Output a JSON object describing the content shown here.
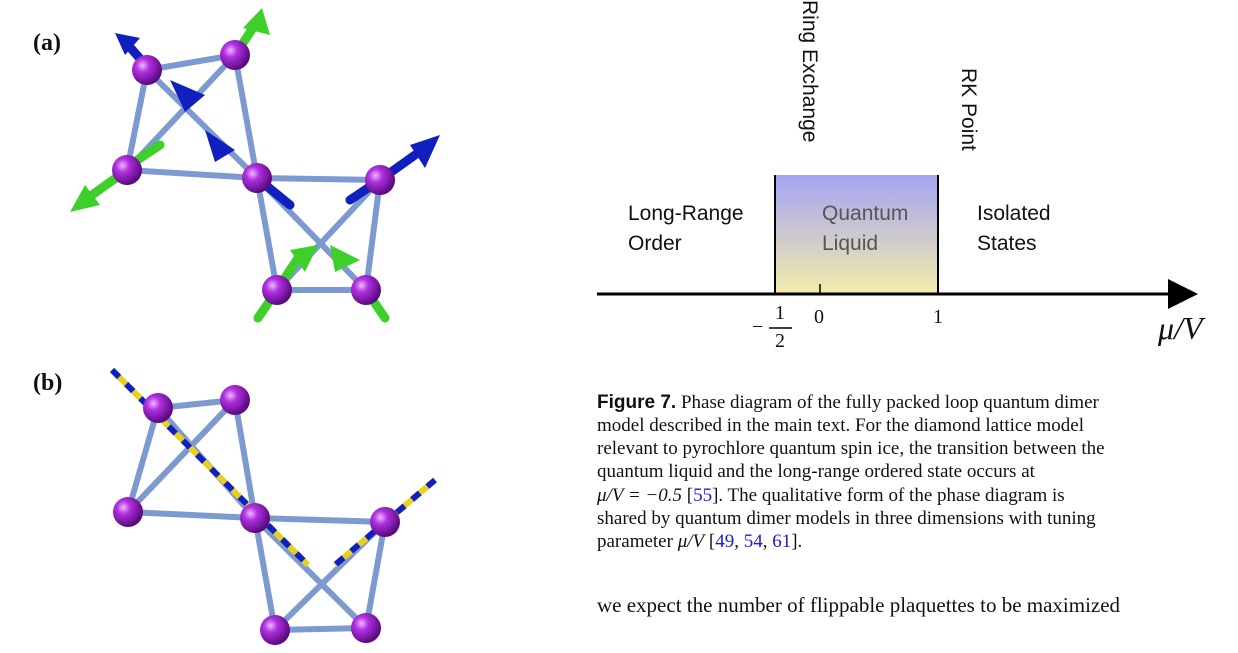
{
  "panels": {
    "a": "(a)",
    "b": "(b)"
  },
  "phase_diagram": {
    "top_labels": [
      "Ring Exchange",
      "RK Point"
    ],
    "regions": [
      {
        "line1": "Long-Range",
        "line2": "Order"
      },
      {
        "line1": "Quantum",
        "line2": "Liquid"
      },
      {
        "line1": "Isolated",
        "line2": "States"
      }
    ],
    "ticks": [
      {
        "sign": "−",
        "numerator": "1",
        "denominator": "2"
      },
      {
        "label": "0"
      },
      {
        "label": "1"
      }
    ],
    "axis_label": "μ/V"
  },
  "caption": {
    "label": "Figure 7.",
    "lines": [
      [
        " Phase diagram of the fully packed loop quantum dimer"
      ],
      [
        "model described in the main text. For the diamond lattice model"
      ],
      [
        "relevant to pyrochlore quantum spin ice, the transition between the"
      ],
      [
        "quantum liquid and the long-range ordered state occurs at"
      ],
      [
        "μ/V = −0.5",
        " [",
        "55",
        "]. The qualitative form of the phase diagram is"
      ],
      [
        "shared by quantum dimer models in three dimensions with tuning"
      ],
      [
        "parameter ",
        "μ/V",
        " [",
        "49",
        ", ",
        "54",
        ", ",
        "61",
        "]."
      ]
    ]
  },
  "body": [
    "we expect the number of flippable plaquettes to be maximized"
  ]
}
